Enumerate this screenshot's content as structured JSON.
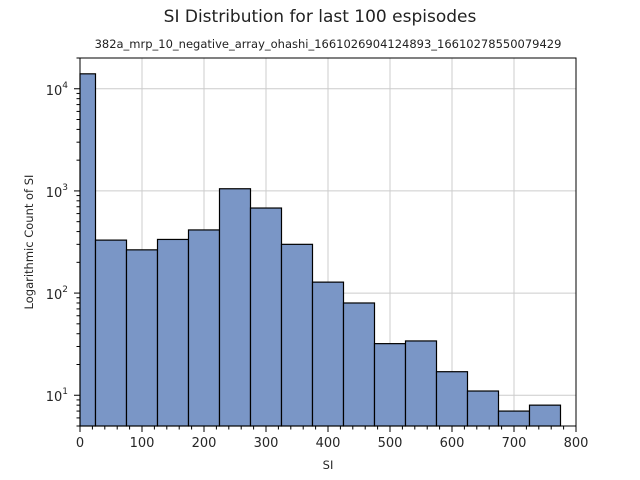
{
  "title": "SI Distribution for last 100 espisodes",
  "subtitle": "382a_mrp_10_negative_array_ohashi_1661026904124893_16610278550079429",
  "chart_data": {
    "type": "bar",
    "title": "SI Distribution for last 100 espisodes",
    "subtitle": "382a_mrp_10_negative_array_ohashi_1661026904124893_16610278550079429",
    "xlabel": "SI",
    "ylabel": "Logarithmic Count of SI",
    "xlim": [
      0,
      800
    ],
    "ylim": [
      5,
      20000
    ],
    "yscale": "log",
    "grid": true,
    "x_ticks": [
      0,
      100,
      200,
      300,
      400,
      500,
      600,
      700,
      800
    ],
    "y_ticks": [
      {
        "value": 10,
        "base": "10",
        "exp": "1"
      },
      {
        "value": 100,
        "base": "10",
        "exp": "2"
      },
      {
        "value": 1000,
        "base": "10",
        "exp": "3"
      },
      {
        "value": 10000,
        "base": "10",
        "exp": "4"
      }
    ],
    "bin_edges": [
      0,
      25,
      75,
      125,
      175,
      225,
      275,
      325,
      375,
      425,
      475,
      525,
      575,
      625,
      675,
      725,
      775
    ],
    "counts": [
      14000,
      330,
      265,
      335,
      415,
      1050,
      680,
      300,
      128,
      80,
      32,
      34,
      17,
      11,
      7,
      8
    ],
    "bar_color": "#7a96c6",
    "edge_color": "#000000"
  }
}
